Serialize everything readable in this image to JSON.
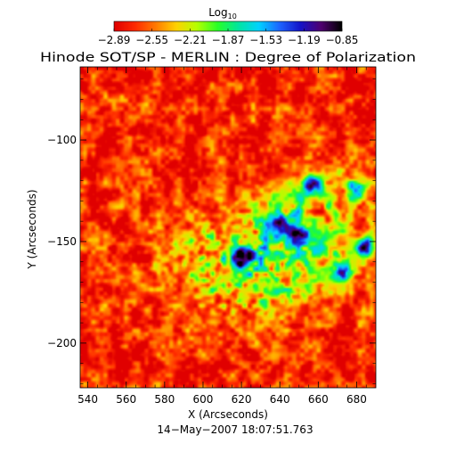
{
  "chart_data": {
    "type": "heatmap",
    "title": "Hinode SOT/SP - MERLIN : Degree of Polarization",
    "xlabel": "X (Arcseconds)",
    "ylabel": "Y (Arcseconds)",
    "xlim": [
      536,
      690
    ],
    "ylim": [
      -222,
      -64
    ],
    "x_ticks": [
      540,
      560,
      580,
      600,
      620,
      640,
      660,
      680
    ],
    "y_ticks": [
      -100,
      -150,
      -200
    ],
    "x_tick_labels": [
      "540",
      "560",
      "580",
      "600",
      "620",
      "640",
      "660",
      "680"
    ],
    "y_tick_labels": [
      "−100",
      "−150",
      "−200"
    ],
    "timestamp": "14−May−2007 18:07:51.763",
    "colorbar": {
      "label_base": "Log",
      "label_sub": "10",
      "range": [
        -2.89,
        -0.85
      ],
      "ticks": [
        -2.89,
        -2.55,
        -2.21,
        -1.87,
        -1.53,
        -1.19,
        -0.85
      ],
      "tick_labels": [
        "−2.89",
        "−2.55",
        "−2.21",
        "−1.87",
        "−1.53",
        "−1.19",
        "−0.85"
      ],
      "colormap": [
        "#e00000",
        "#ff2a00",
        "#ff7a00",
        "#ffd200",
        "#b4ff00",
        "#28ff28",
        "#00e6a0",
        "#00d2ff",
        "#1e64ff",
        "#1414c8",
        "#500070",
        "#000000"
      ]
    },
    "background_log10_level": -2.75,
    "active_region_center": [
      624,
      -160
    ],
    "high_polarization_patches": [
      {
        "x": 620,
        "y": -157,
        "value": -0.95
      },
      {
        "x": 657,
        "y": -122,
        "value": -1.2
      },
      {
        "x": 639,
        "y": -141,
        "value": -1.3
      },
      {
        "x": 672,
        "y": -166,
        "value": -1.3
      },
      {
        "x": 685,
        "y": -153,
        "value": -1.25
      },
      {
        "x": 649,
        "y": -147,
        "value": -1.4
      },
      {
        "x": 680,
        "y": -125,
        "value": -1.4
      }
    ]
  }
}
